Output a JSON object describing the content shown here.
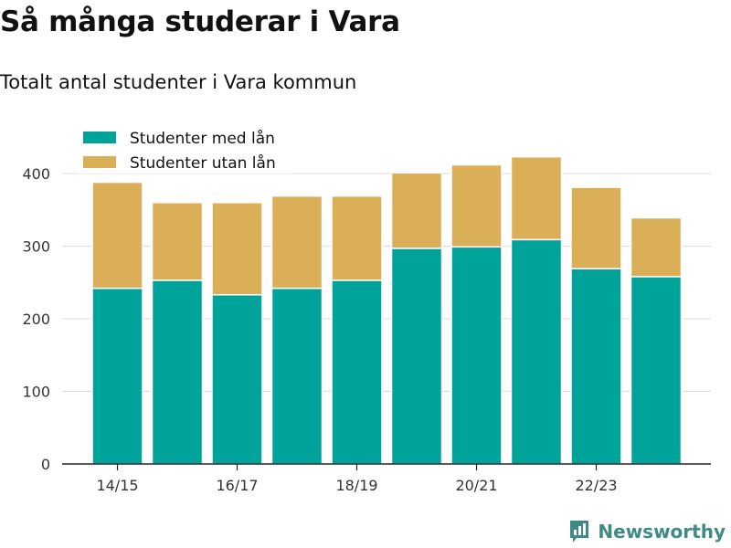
{
  "title": "Så många studerar i Vara",
  "subtitle": "Totalt antal studenter i Vara kommun",
  "brand": {
    "name": "Newsworthy",
    "icon": "newsworthy-logo-icon"
  },
  "colors": {
    "with_loan": "#00a39a",
    "without_loan": "#dbae58",
    "grid": "#dddddd",
    "axis": "#222222"
  },
  "chart_data": {
    "type": "bar",
    "stacked": true,
    "categories": [
      "14/15",
      "15/16",
      "16/17",
      "17/18",
      "18/19",
      "19/20",
      "20/21",
      "21/22",
      "22/23",
      "23/24"
    ],
    "tick_labels": [
      "14/15",
      "",
      "16/17",
      "",
      "18/19",
      "",
      "20/21",
      "",
      "22/23",
      ""
    ],
    "series": [
      {
        "name": "Studenter med lån",
        "values": [
          242,
          253,
          233,
          242,
          253,
          297,
          299,
          309,
          269,
          258
        ]
      },
      {
        "name": "Studenter utan lån",
        "values": [
          146,
          107,
          127,
          127,
          116,
          104,
          113,
          114,
          112,
          81
        ]
      }
    ],
    "ylim": [
      0,
      450
    ],
    "yticks": [
      0,
      100,
      200,
      300,
      400
    ],
    "grid": true,
    "legend": "top-left"
  }
}
